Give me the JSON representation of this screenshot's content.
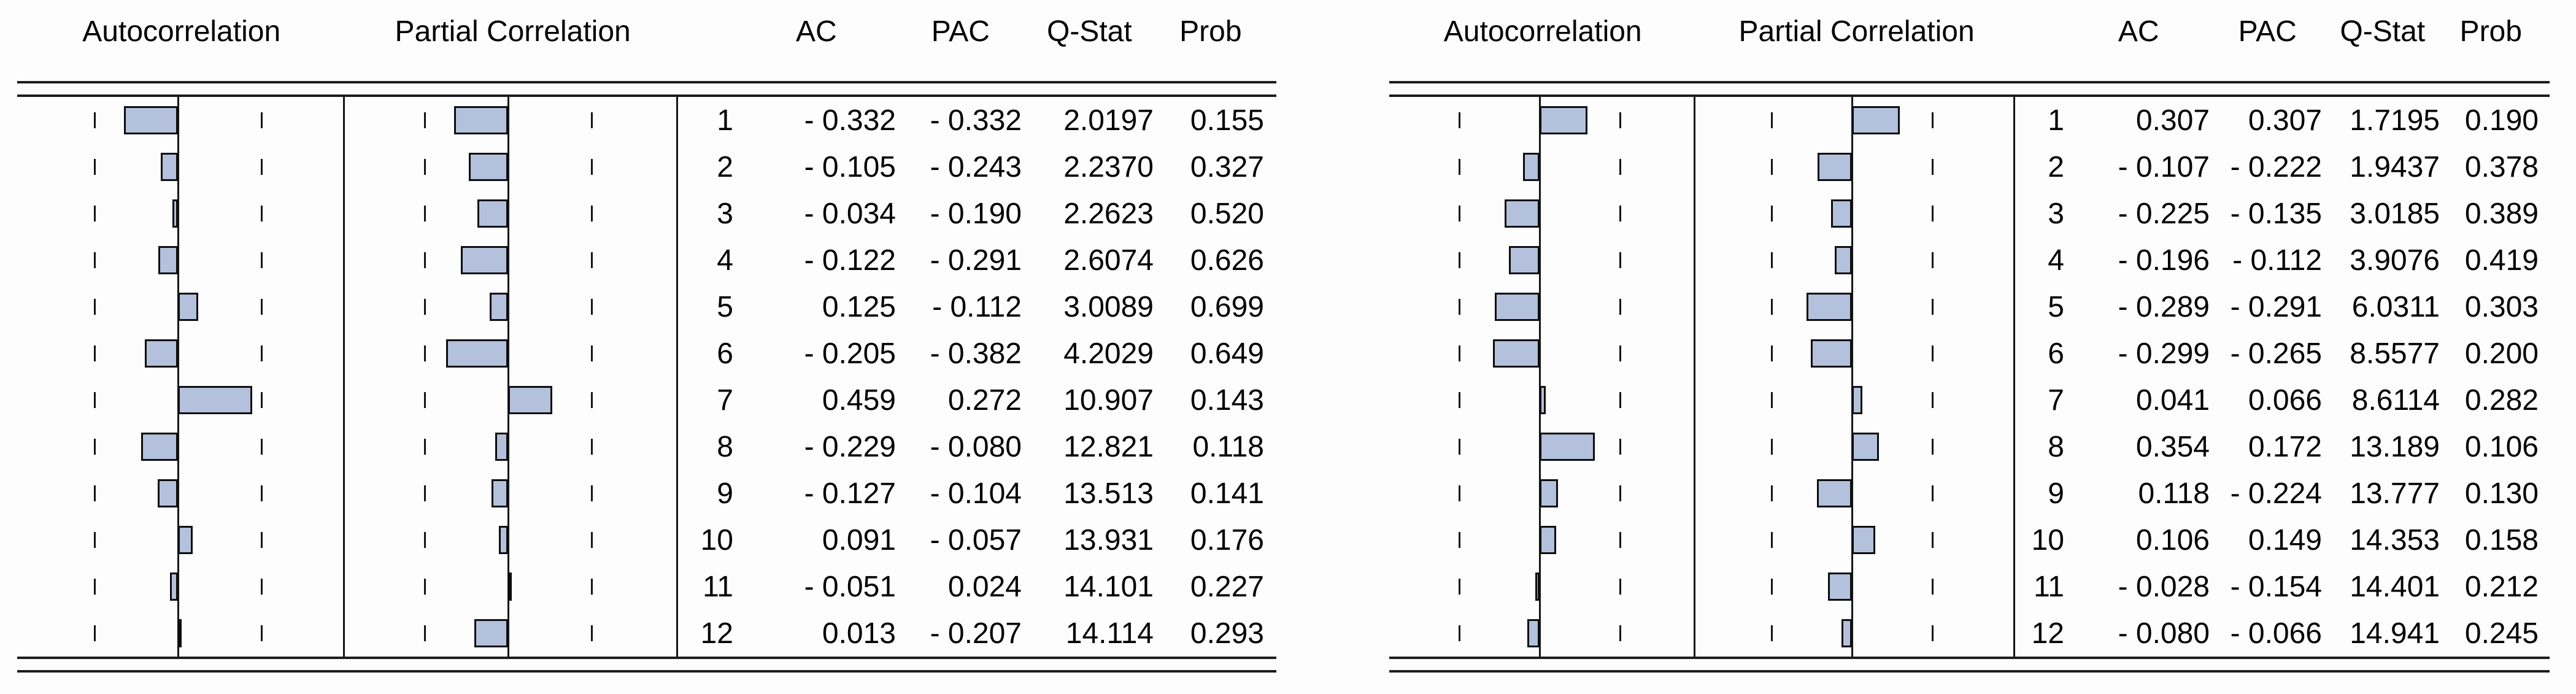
{
  "columns": {
    "autocorrelation": "Autocorrelation",
    "partial_correlation": "Partial Correlation",
    "lag": "",
    "ac": "AC",
    "pac": "PAC",
    "q_stat": "Q-Stat",
    "prob": "Prob"
  },
  "colors": {
    "bar_fill": "#b3c1dd",
    "bar_border": "#0d0d0d",
    "line": "#151515",
    "text": "#000000",
    "background": "#fdfdfd"
  },
  "chart_data": [
    {
      "type": "bar",
      "orientation": "horizontal",
      "panel": "left",
      "legend_position": "none",
      "grid": false,
      "confidence_band": 0.516,
      "xlim": [
        -0.55,
        0.55
      ],
      "lags": [
        1,
        2,
        3,
        4,
        5,
        6,
        7,
        8,
        9,
        10,
        11,
        12
      ],
      "series": [
        {
          "name": "AC",
          "values": [
            -0.332,
            -0.105,
            -0.034,
            -0.122,
            0.125,
            -0.205,
            0.459,
            -0.229,
            -0.127,
            0.091,
            -0.051,
            0.013
          ]
        },
        {
          "name": "PAC",
          "values": [
            -0.332,
            -0.243,
            -0.19,
            -0.291,
            -0.112,
            -0.382,
            0.272,
            -0.08,
            -0.104,
            -0.057,
            0.024,
            -0.207
          ]
        }
      ],
      "q_stat": [
        2.0197,
        2.237,
        2.2623,
        2.6074,
        3.0089,
        4.2029,
        10.907,
        12.821,
        13.513,
        13.931,
        14.101,
        14.114
      ],
      "prob": [
        0.155,
        0.327,
        0.52,
        0.626,
        0.699,
        0.649,
        0.143,
        0.118,
        0.141,
        0.176,
        0.227,
        0.293
      ]
    },
    {
      "type": "bar",
      "orientation": "horizontal",
      "panel": "right",
      "legend_position": "none",
      "grid": false,
      "confidence_band": 0.516,
      "xlim": [
        -0.55,
        0.55
      ],
      "lags": [
        1,
        2,
        3,
        4,
        5,
        6,
        7,
        8,
        9,
        10,
        11,
        12
      ],
      "series": [
        {
          "name": "AC",
          "values": [
            0.307,
            -0.107,
            -0.225,
            -0.196,
            -0.289,
            -0.299,
            0.041,
            0.354,
            0.118,
            0.106,
            -0.028,
            -0.08
          ]
        },
        {
          "name": "PAC",
          "values": [
            0.307,
            -0.222,
            -0.135,
            -0.112,
            -0.291,
            -0.265,
            0.066,
            0.172,
            -0.224,
            0.149,
            -0.154,
            -0.066
          ]
        }
      ],
      "q_stat": [
        1.7195,
        1.9437,
        3.0185,
        3.9076,
        6.0311,
        8.5577,
        8.6114,
        13.189,
        13.777,
        14.353,
        14.401,
        14.941
      ],
      "prob": [
        0.19,
        0.378,
        0.389,
        0.419,
        0.303,
        0.2,
        0.282,
        0.106,
        0.13,
        0.158,
        0.212,
        0.245
      ]
    }
  ]
}
